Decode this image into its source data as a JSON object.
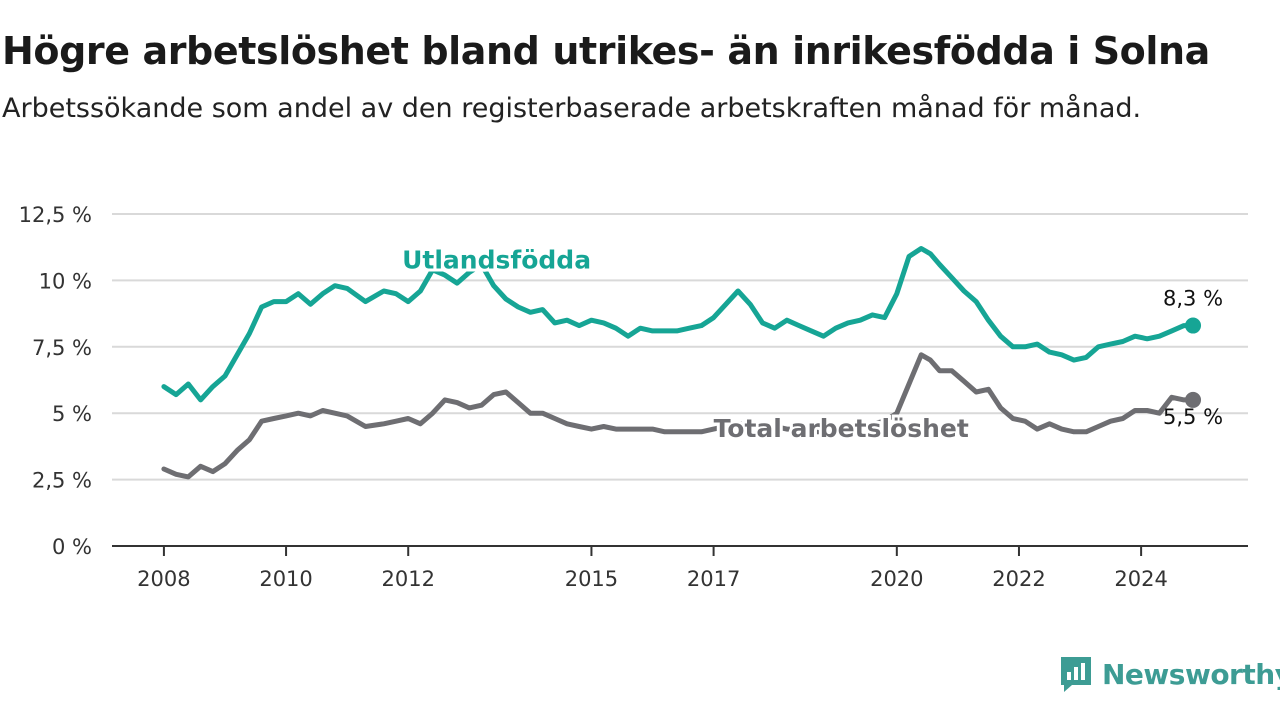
{
  "title": "Högre arbetslöshet bland utrikes- än inrikesfödda i Solna",
  "subtitle": "Arbetssökande som andel av den registerbaserade arbetskraften månad för månad.",
  "logo": {
    "text": "Newsworthy",
    "icon": "newsworthy-chart-icon"
  },
  "colors": {
    "utlandsfodda": "#16a595",
    "total": "#6e6e72",
    "grid": "#d9d9d9",
    "axis": "#333333",
    "brand": "#3d9c94"
  },
  "chart_data": {
    "type": "line",
    "title": "Högre arbetslöshet bland utrikes- än inrikesfödda i Solna",
    "subtitle": "Arbetssökande som andel av den registerbaserade arbetskraften månad för månad.",
    "xlabel": "",
    "ylabel": "",
    "ylim": [
      0,
      12.5
    ],
    "xlim": [
      2007.15,
      2025.75
    ],
    "y_ticks": [
      0,
      2.5,
      5,
      7.5,
      10,
      12.5
    ],
    "y_tick_labels": [
      "0 %",
      "2,5 %",
      "5 %",
      "7,5 %",
      "10 %",
      "12,5 %"
    ],
    "x_ticks": [
      2008,
      2010,
      2012,
      2015,
      2017,
      2020,
      2022,
      2024
    ],
    "x_tick_labels": [
      "2008",
      "2010",
      "2012",
      "2015",
      "2017",
      "2020",
      "2022",
      "2024"
    ],
    "grid": true,
    "legend": "none",
    "series": [
      {
        "name": "Utlandsfödda",
        "end_label": "8,3 %",
        "x": [
          2008.0,
          2008.2,
          2008.4,
          2008.6,
          2008.8,
          2009.0,
          2009.2,
          2009.4,
          2009.6,
          2009.8,
          2010.0,
          2010.2,
          2010.4,
          2010.6,
          2010.8,
          2011.0,
          2011.3,
          2011.6,
          2011.8,
          2012.0,
          2012.2,
          2012.4,
          2012.6,
          2012.8,
          2013.0,
          2013.2,
          2013.4,
          2013.6,
          2013.8,
          2014.0,
          2014.2,
          2014.4,
          2014.6,
          2014.8,
          2015.0,
          2015.2,
          2015.4,
          2015.6,
          2015.8,
          2016.0,
          2016.2,
          2016.4,
          2016.6,
          2016.8,
          2017.0,
          2017.2,
          2017.4,
          2017.6,
          2017.8,
          2018.0,
          2018.2,
          2018.4,
          2018.6,
          2018.8,
          2019.0,
          2019.2,
          2019.4,
          2019.6,
          2019.8,
          2020.0,
          2020.2,
          2020.4,
          2020.55,
          2020.7,
          2020.9,
          2021.1,
          2021.3,
          2021.5,
          2021.7,
          2021.9,
          2022.1,
          2022.3,
          2022.5,
          2022.7,
          2022.9,
          2023.1,
          2023.3,
          2023.5,
          2023.7,
          2023.9,
          2024.1,
          2024.3,
          2024.5,
          2024.7,
          2024.85
        ],
        "values": [
          6.0,
          5.7,
          6.1,
          5.5,
          6.0,
          6.4,
          7.2,
          8.0,
          9.0,
          9.2,
          9.2,
          9.5,
          9.1,
          9.5,
          9.8,
          9.7,
          9.2,
          9.6,
          9.5,
          9.2,
          9.6,
          10.4,
          10.2,
          9.9,
          10.3,
          10.6,
          9.8,
          9.3,
          9.0,
          8.8,
          8.9,
          8.4,
          8.5,
          8.3,
          8.5,
          8.4,
          8.2,
          7.9,
          8.2,
          8.1,
          8.1,
          8.1,
          8.2,
          8.3,
          8.6,
          9.1,
          9.6,
          9.1,
          8.4,
          8.2,
          8.5,
          8.3,
          8.1,
          7.9,
          8.2,
          8.4,
          8.5,
          8.7,
          8.6,
          9.5,
          10.9,
          11.2,
          11.0,
          10.6,
          10.1,
          9.6,
          9.2,
          8.5,
          7.9,
          7.5,
          7.5,
          7.6,
          7.3,
          7.2,
          7.0,
          7.1,
          7.5,
          7.6,
          7.7,
          7.9,
          7.8,
          7.9,
          8.1,
          8.3,
          8.3
        ]
      },
      {
        "name": "Total arbetslöshet",
        "end_label": "5,5 %",
        "x": [
          2008.0,
          2008.2,
          2008.4,
          2008.6,
          2008.8,
          2009.0,
          2009.2,
          2009.4,
          2009.6,
          2009.8,
          2010.0,
          2010.2,
          2010.4,
          2010.6,
          2010.8,
          2011.0,
          2011.3,
          2011.6,
          2011.8,
          2012.0,
          2012.2,
          2012.4,
          2012.6,
          2012.8,
          2013.0,
          2013.2,
          2013.4,
          2013.6,
          2013.8,
          2014.0,
          2014.2,
          2014.4,
          2014.6,
          2014.8,
          2015.0,
          2015.2,
          2015.4,
          2015.6,
          2015.8,
          2016.0,
          2016.2,
          2016.4,
          2016.6,
          2016.8,
          2017.0,
          2017.2,
          2017.4,
          2017.6,
          2017.8,
          2018.0,
          2018.2,
          2018.4,
          2018.6,
          2018.8,
          2019.0,
          2019.2,
          2019.4,
          2019.6,
          2019.8,
          2020.0,
          2020.2,
          2020.4,
          2020.55,
          2020.7,
          2020.9,
          2021.1,
          2021.3,
          2021.5,
          2021.7,
          2021.9,
          2022.1,
          2022.3,
          2022.5,
          2022.7,
          2022.9,
          2023.1,
          2023.3,
          2023.5,
          2023.7,
          2023.9,
          2024.1,
          2024.3,
          2024.5,
          2024.7,
          2024.85
        ],
        "values": [
          2.9,
          2.7,
          2.6,
          3.0,
          2.8,
          3.1,
          3.6,
          4.0,
          4.7,
          4.8,
          4.9,
          5.0,
          4.9,
          5.1,
          5.0,
          4.9,
          4.5,
          4.6,
          4.7,
          4.8,
          4.6,
          5.0,
          5.5,
          5.4,
          5.2,
          5.3,
          5.7,
          5.8,
          5.4,
          5.0,
          5.0,
          4.8,
          4.6,
          4.5,
          4.4,
          4.5,
          4.4,
          4.4,
          4.4,
          4.4,
          4.3,
          4.3,
          4.3,
          4.3,
          4.4,
          4.5,
          4.6,
          4.6,
          4.5,
          4.5,
          4.4,
          4.4,
          4.3,
          4.3,
          4.3,
          4.4,
          4.5,
          4.6,
          4.7,
          5.0,
          6.1,
          7.2,
          7.0,
          6.6,
          6.6,
          6.2,
          5.8,
          5.9,
          5.2,
          4.8,
          4.7,
          4.4,
          4.6,
          4.4,
          4.3,
          4.3,
          4.5,
          4.7,
          4.8,
          5.1,
          5.1,
          5.0,
          5.6,
          5.5,
          5.5
        ]
      }
    ]
  }
}
